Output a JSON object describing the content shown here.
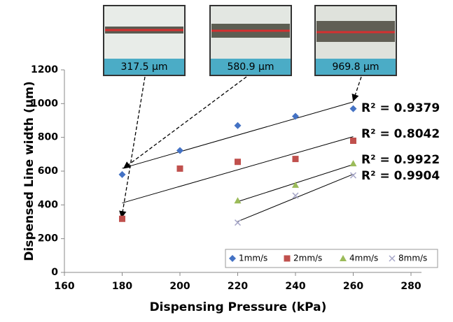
{
  "chart_data": {
    "type": "scatter",
    "x_label": "Dispensing Pressure (kPa)",
    "y_label": "Dispensed Line width (µm)",
    "xlim": [
      160,
      280
    ],
    "xticks": [
      160,
      180,
      200,
      220,
      240,
      260,
      280
    ],
    "ylim": [
      0,
      1200
    ],
    "yticks": [
      0,
      200,
      400,
      600,
      800,
      1000,
      1200
    ],
    "grid": false,
    "legend": "lower right",
    "trendline": "linear",
    "series": [
      {
        "name": "1mm/s",
        "color": "#4472c4",
        "marker": "diamond",
        "x": [
          180,
          200,
          220,
          240,
          260
        ],
        "values": [
          580,
          722,
          870,
          925,
          970
        ],
        "trendline_label": "R² = 0.9379"
      },
      {
        "name": "2mm/s",
        "color": "#c0504d",
        "marker": "square",
        "x": [
          180,
          200,
          220,
          240,
          260
        ],
        "values": [
          317.5,
          615,
          655,
          672,
          780
        ],
        "trendline_label": "R² = 0.8042"
      },
      {
        "name": "4mm/s",
        "color": "#9bbb59",
        "marker": "triangle",
        "x": [
          220,
          240,
          260
        ],
        "values": [
          425,
          518,
          645
        ],
        "trendline_label": "R² = 0.9922"
      },
      {
        "name": "8mm/s",
        "color": "#a6a6c8",
        "marker": "x",
        "x": [
          220,
          240,
          260
        ],
        "values": [
          295,
          455,
          575
        ],
        "trendline_label": "R² = 0.9904"
      }
    ],
    "insets": [
      {
        "label": "317.5 µm"
      },
      {
        "label": "580.9 µm"
      },
      {
        "label": "969.8 µm"
      }
    ]
  }
}
